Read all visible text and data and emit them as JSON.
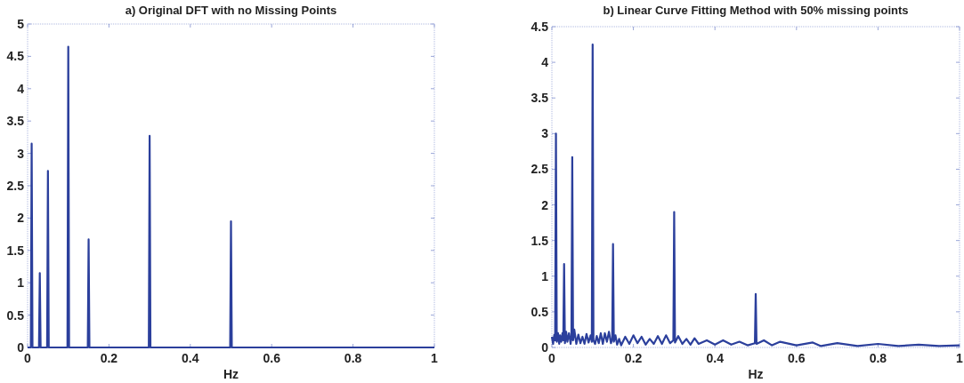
{
  "chart_data": [
    {
      "type": "line",
      "title": "a) Original DFT with no Missing Points",
      "xlabel": "Hz",
      "xlim": [
        0,
        1
      ],
      "xticks": [
        0,
        0.2,
        0.4,
        0.6,
        0.8,
        1
      ],
      "ylim": [
        0,
        5
      ],
      "yticks": [
        0,
        0.5,
        1,
        1.5,
        2,
        2.5,
        3,
        3.5,
        4,
        4.5,
        5
      ],
      "grid": false,
      "series": [
        {
          "color": "#2b3f9c",
          "x": [
            0,
            0.008,
            0.01,
            0.012,
            0.028,
            0.03,
            0.032,
            0.048,
            0.05,
            0.052,
            0.098,
            0.1,
            0.102,
            0.148,
            0.15,
            0.152,
            0.298,
            0.3,
            0.302,
            0.498,
            0.5,
            0.502,
            1
          ],
          "values": [
            0,
            0,
            3.15,
            0,
            0,
            1.15,
            0,
            0,
            2.73,
            0,
            0,
            4.65,
            0,
            0,
            1.67,
            0,
            0,
            3.27,
            0,
            0,
            1.95,
            0,
            0
          ]
        }
      ]
    },
    {
      "type": "line",
      "title": "b) Linear Curve Fitting Method with 50% missing points",
      "xlabel": "Hz",
      "xlim": [
        0,
        1
      ],
      "xticks": [
        0,
        0.2,
        0.4,
        0.6,
        0.8,
        1
      ],
      "ylim": [
        0,
        4.5
      ],
      "yticks": [
        0,
        0.5,
        1,
        1.5,
        2,
        2.5,
        3,
        3.5,
        4,
        4.5
      ],
      "grid": false,
      "series": [
        {
          "color": "#2b3f9c",
          "x": [
            0,
            0.003,
            0.006,
            0.008,
            0.01,
            0.012,
            0.015,
            0.018,
            0.02,
            0.023,
            0.026,
            0.028,
            0.03,
            0.032,
            0.035,
            0.038,
            0.042,
            0.046,
            0.048,
            0.05,
            0.052,
            0.055,
            0.06,
            0.065,
            0.07,
            0.075,
            0.08,
            0.085,
            0.09,
            0.095,
            0.098,
            0.1,
            0.102,
            0.106,
            0.11,
            0.115,
            0.12,
            0.125,
            0.13,
            0.135,
            0.14,
            0.145,
            0.148,
            0.15,
            0.152,
            0.156,
            0.16,
            0.165,
            0.17,
            0.18,
            0.19,
            0.2,
            0.21,
            0.22,
            0.23,
            0.24,
            0.25,
            0.26,
            0.27,
            0.28,
            0.29,
            0.298,
            0.3,
            0.302,
            0.31,
            0.32,
            0.33,
            0.34,
            0.35,
            0.36,
            0.38,
            0.4,
            0.42,
            0.44,
            0.46,
            0.48,
            0.498,
            0.5,
            0.502,
            0.52,
            0.54,
            0.56,
            0.6,
            0.64,
            0.66,
            0.7,
            0.75,
            0.8,
            0.85,
            0.9,
            0.95,
            1
          ],
          "values": [
            0.15,
            0.05,
            0.18,
            0.1,
            3.0,
            0.08,
            0.2,
            0.05,
            0.17,
            0.08,
            0.2,
            0.1,
            1.17,
            0.06,
            0.22,
            0.08,
            0.2,
            0.05,
            0.15,
            2.67,
            0.1,
            0.25,
            0.05,
            0.18,
            0.06,
            0.15,
            0.05,
            0.19,
            0.07,
            0.17,
            0.08,
            4.25,
            0.1,
            0.05,
            0.16,
            0.06,
            0.2,
            0.05,
            0.2,
            0.08,
            0.22,
            0.06,
            0.12,
            1.45,
            0.08,
            0.17,
            0.04,
            0.12,
            0.03,
            0.15,
            0.05,
            0.17,
            0.06,
            0.15,
            0.04,
            0.12,
            0.05,
            0.16,
            0.05,
            0.17,
            0.06,
            0.1,
            1.9,
            0.07,
            0.16,
            0.05,
            0.12,
            0.04,
            0.13,
            0.05,
            0.1,
            0.04,
            0.1,
            0.04,
            0.08,
            0.03,
            0.06,
            0.75,
            0.05,
            0.1,
            0.03,
            0.08,
            0.03,
            0.07,
            0.02,
            0.06,
            0.02,
            0.05,
            0.02,
            0.04,
            0.02,
            0.03
          ]
        }
      ]
    }
  ]
}
